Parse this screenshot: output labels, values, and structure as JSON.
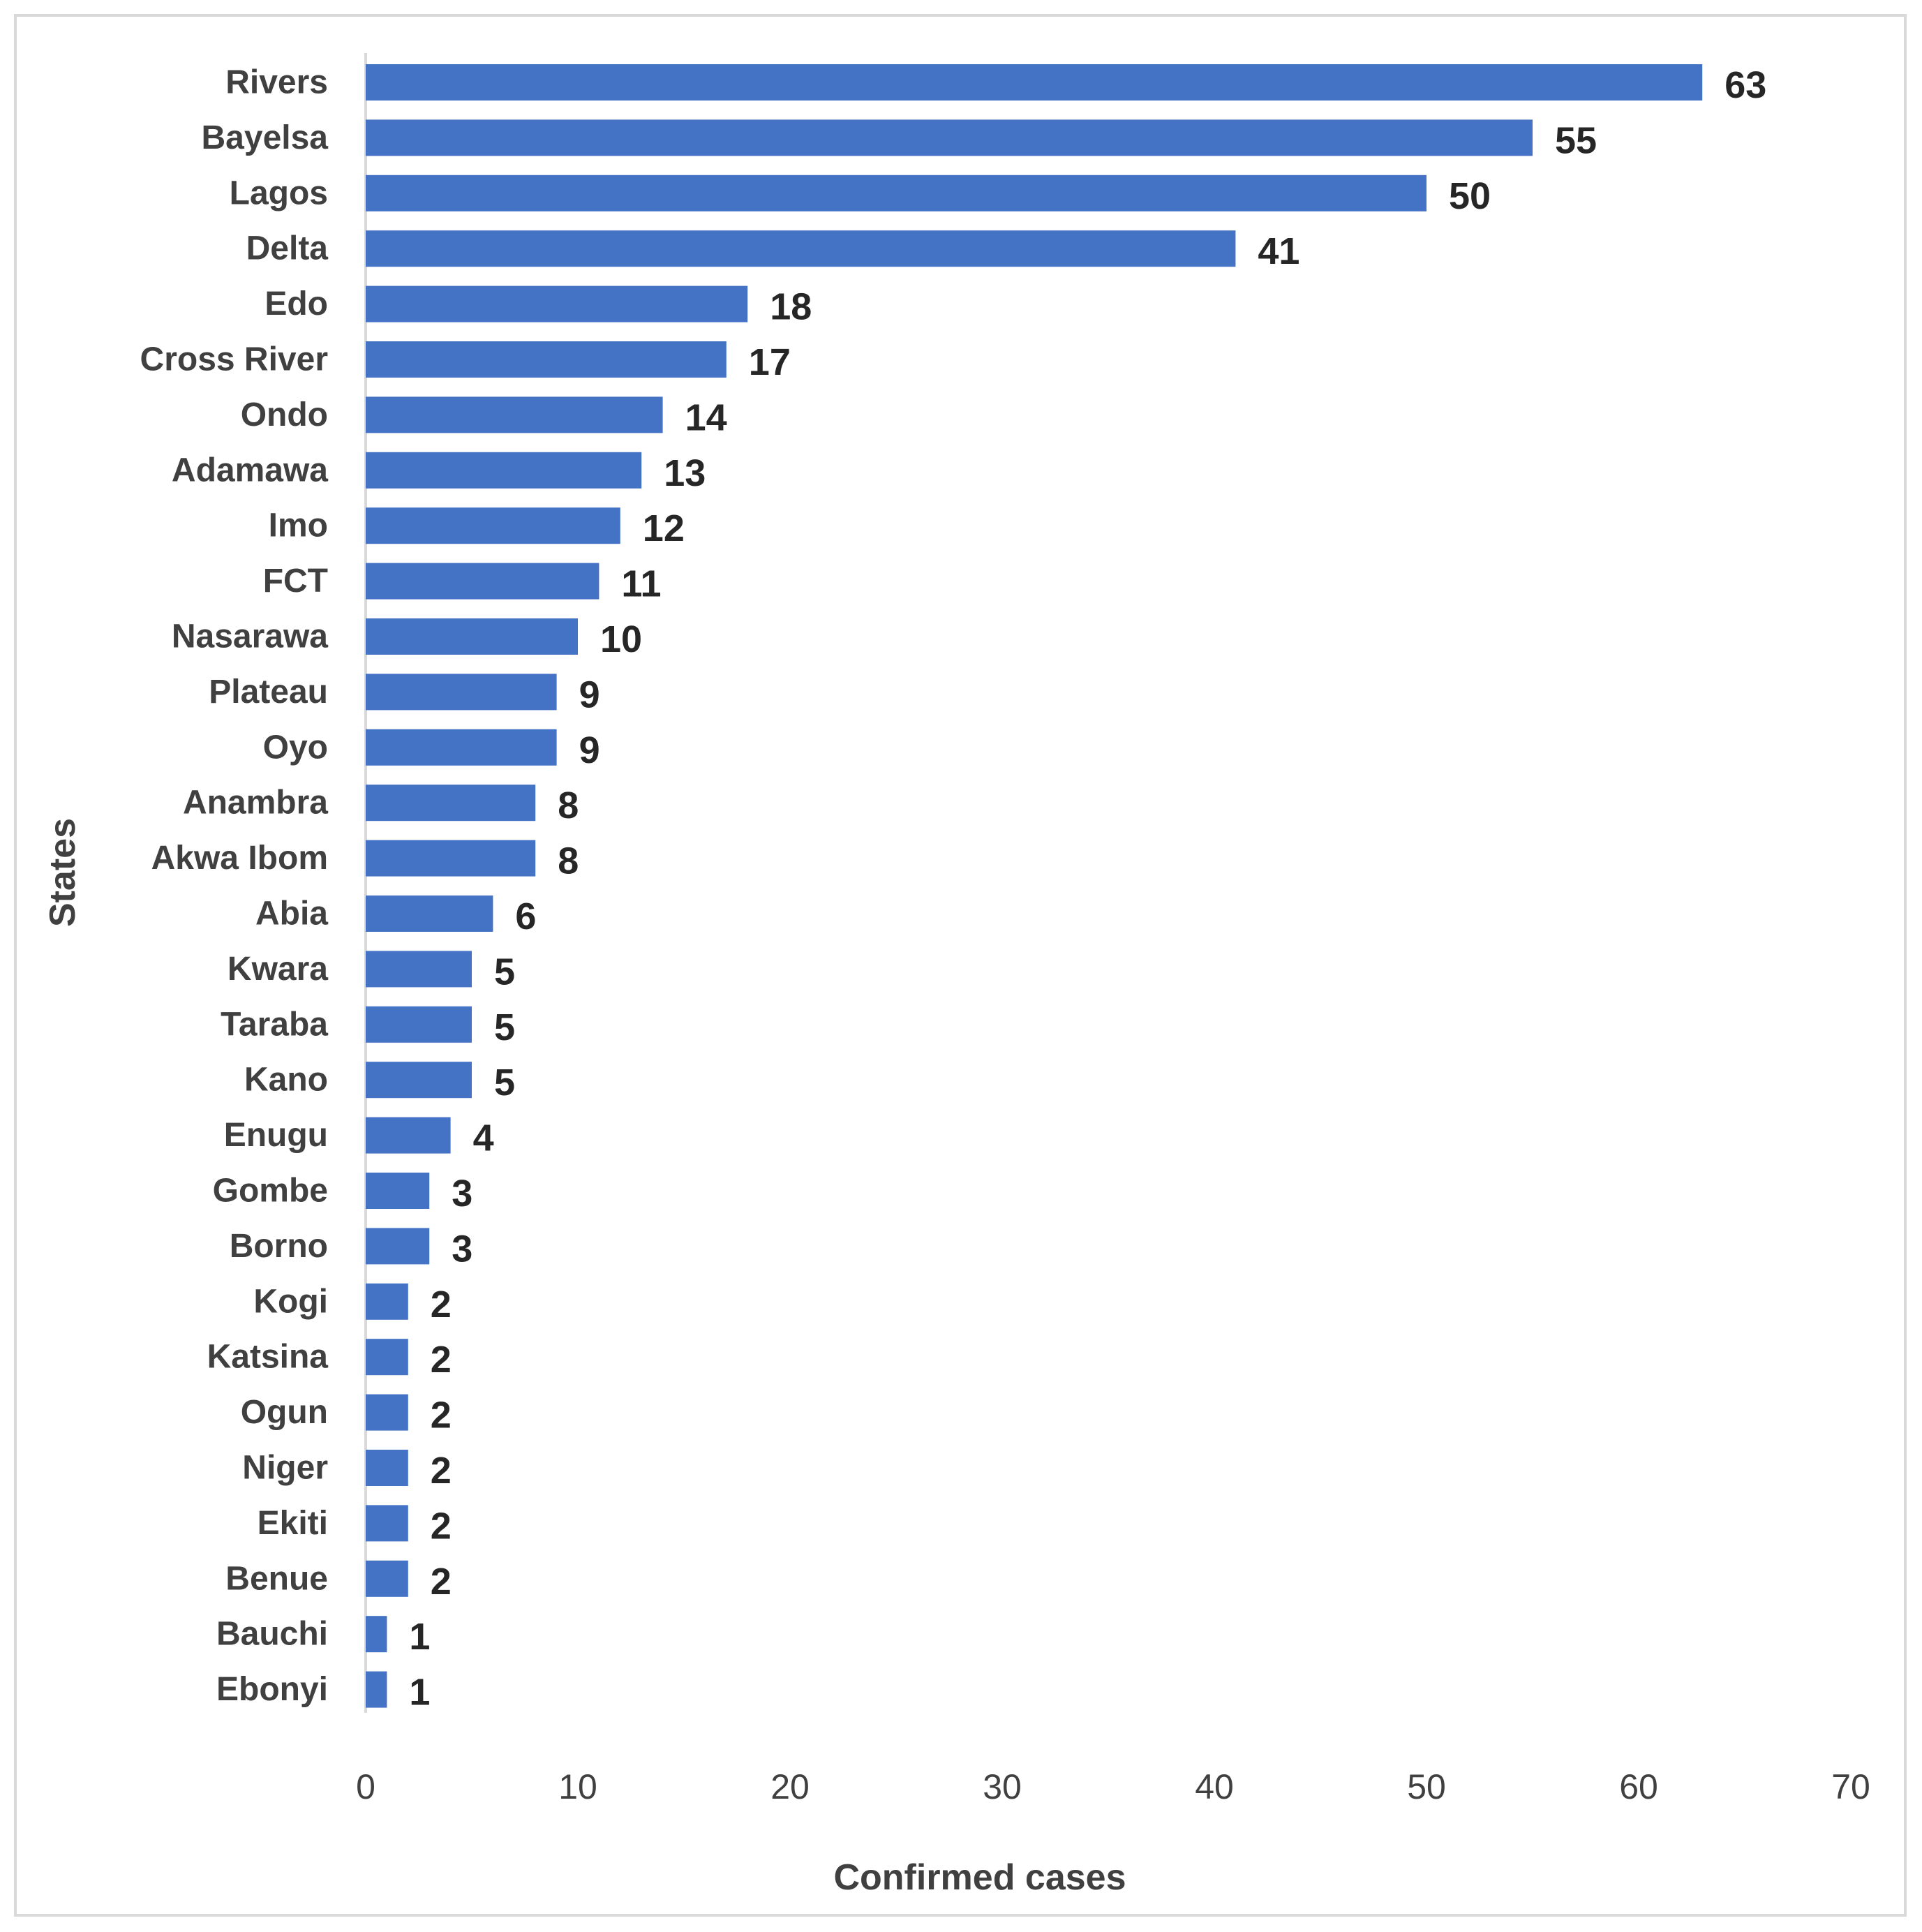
{
  "chart_data": {
    "type": "bar",
    "orientation": "horizontal",
    "categories": [
      "Rivers",
      "Bayelsa",
      "Lagos",
      "Delta",
      "Edo",
      "Cross River",
      "Ondo",
      "Adamawa",
      "Imo",
      "FCT",
      "Nasarawa",
      "Plateau",
      "Oyo",
      "Anambra",
      "Akwa Ibom",
      "Abia",
      "Kwara",
      "Taraba",
      "Kano",
      "Enugu",
      "Gombe",
      "Borno",
      "Kogi",
      "Katsina",
      "Ogun",
      "Niger",
      "Ekiti",
      "Benue",
      "Bauchi",
      "Ebonyi"
    ],
    "values": [
      63,
      55,
      50,
      41,
      18,
      17,
      14,
      13,
      12,
      11,
      10,
      9,
      9,
      8,
      8,
      6,
      5,
      5,
      5,
      4,
      3,
      3,
      2,
      2,
      2,
      2,
      2,
      2,
      1,
      1
    ],
    "data_labels": [
      "63",
      "55",
      "50",
      "41",
      "18",
      "17",
      "14",
      "13",
      "12",
      "11",
      "10",
      "9",
      "9",
      "8",
      "8",
      "6",
      "5",
      "5",
      "5",
      "4",
      "3",
      "3",
      "2",
      "2",
      "2",
      "2",
      "2",
      "2",
      "1",
      "1"
    ],
    "xlabel": "Confirmed cases",
    "ylabel": "States",
    "xlim": [
      0,
      70
    ],
    "xticks": [
      "0",
      "10",
      "20",
      "30",
      "40",
      "50",
      "60",
      "70"
    ],
    "bar_color": "#4472C4",
    "grid": false,
    "legend": false
  }
}
